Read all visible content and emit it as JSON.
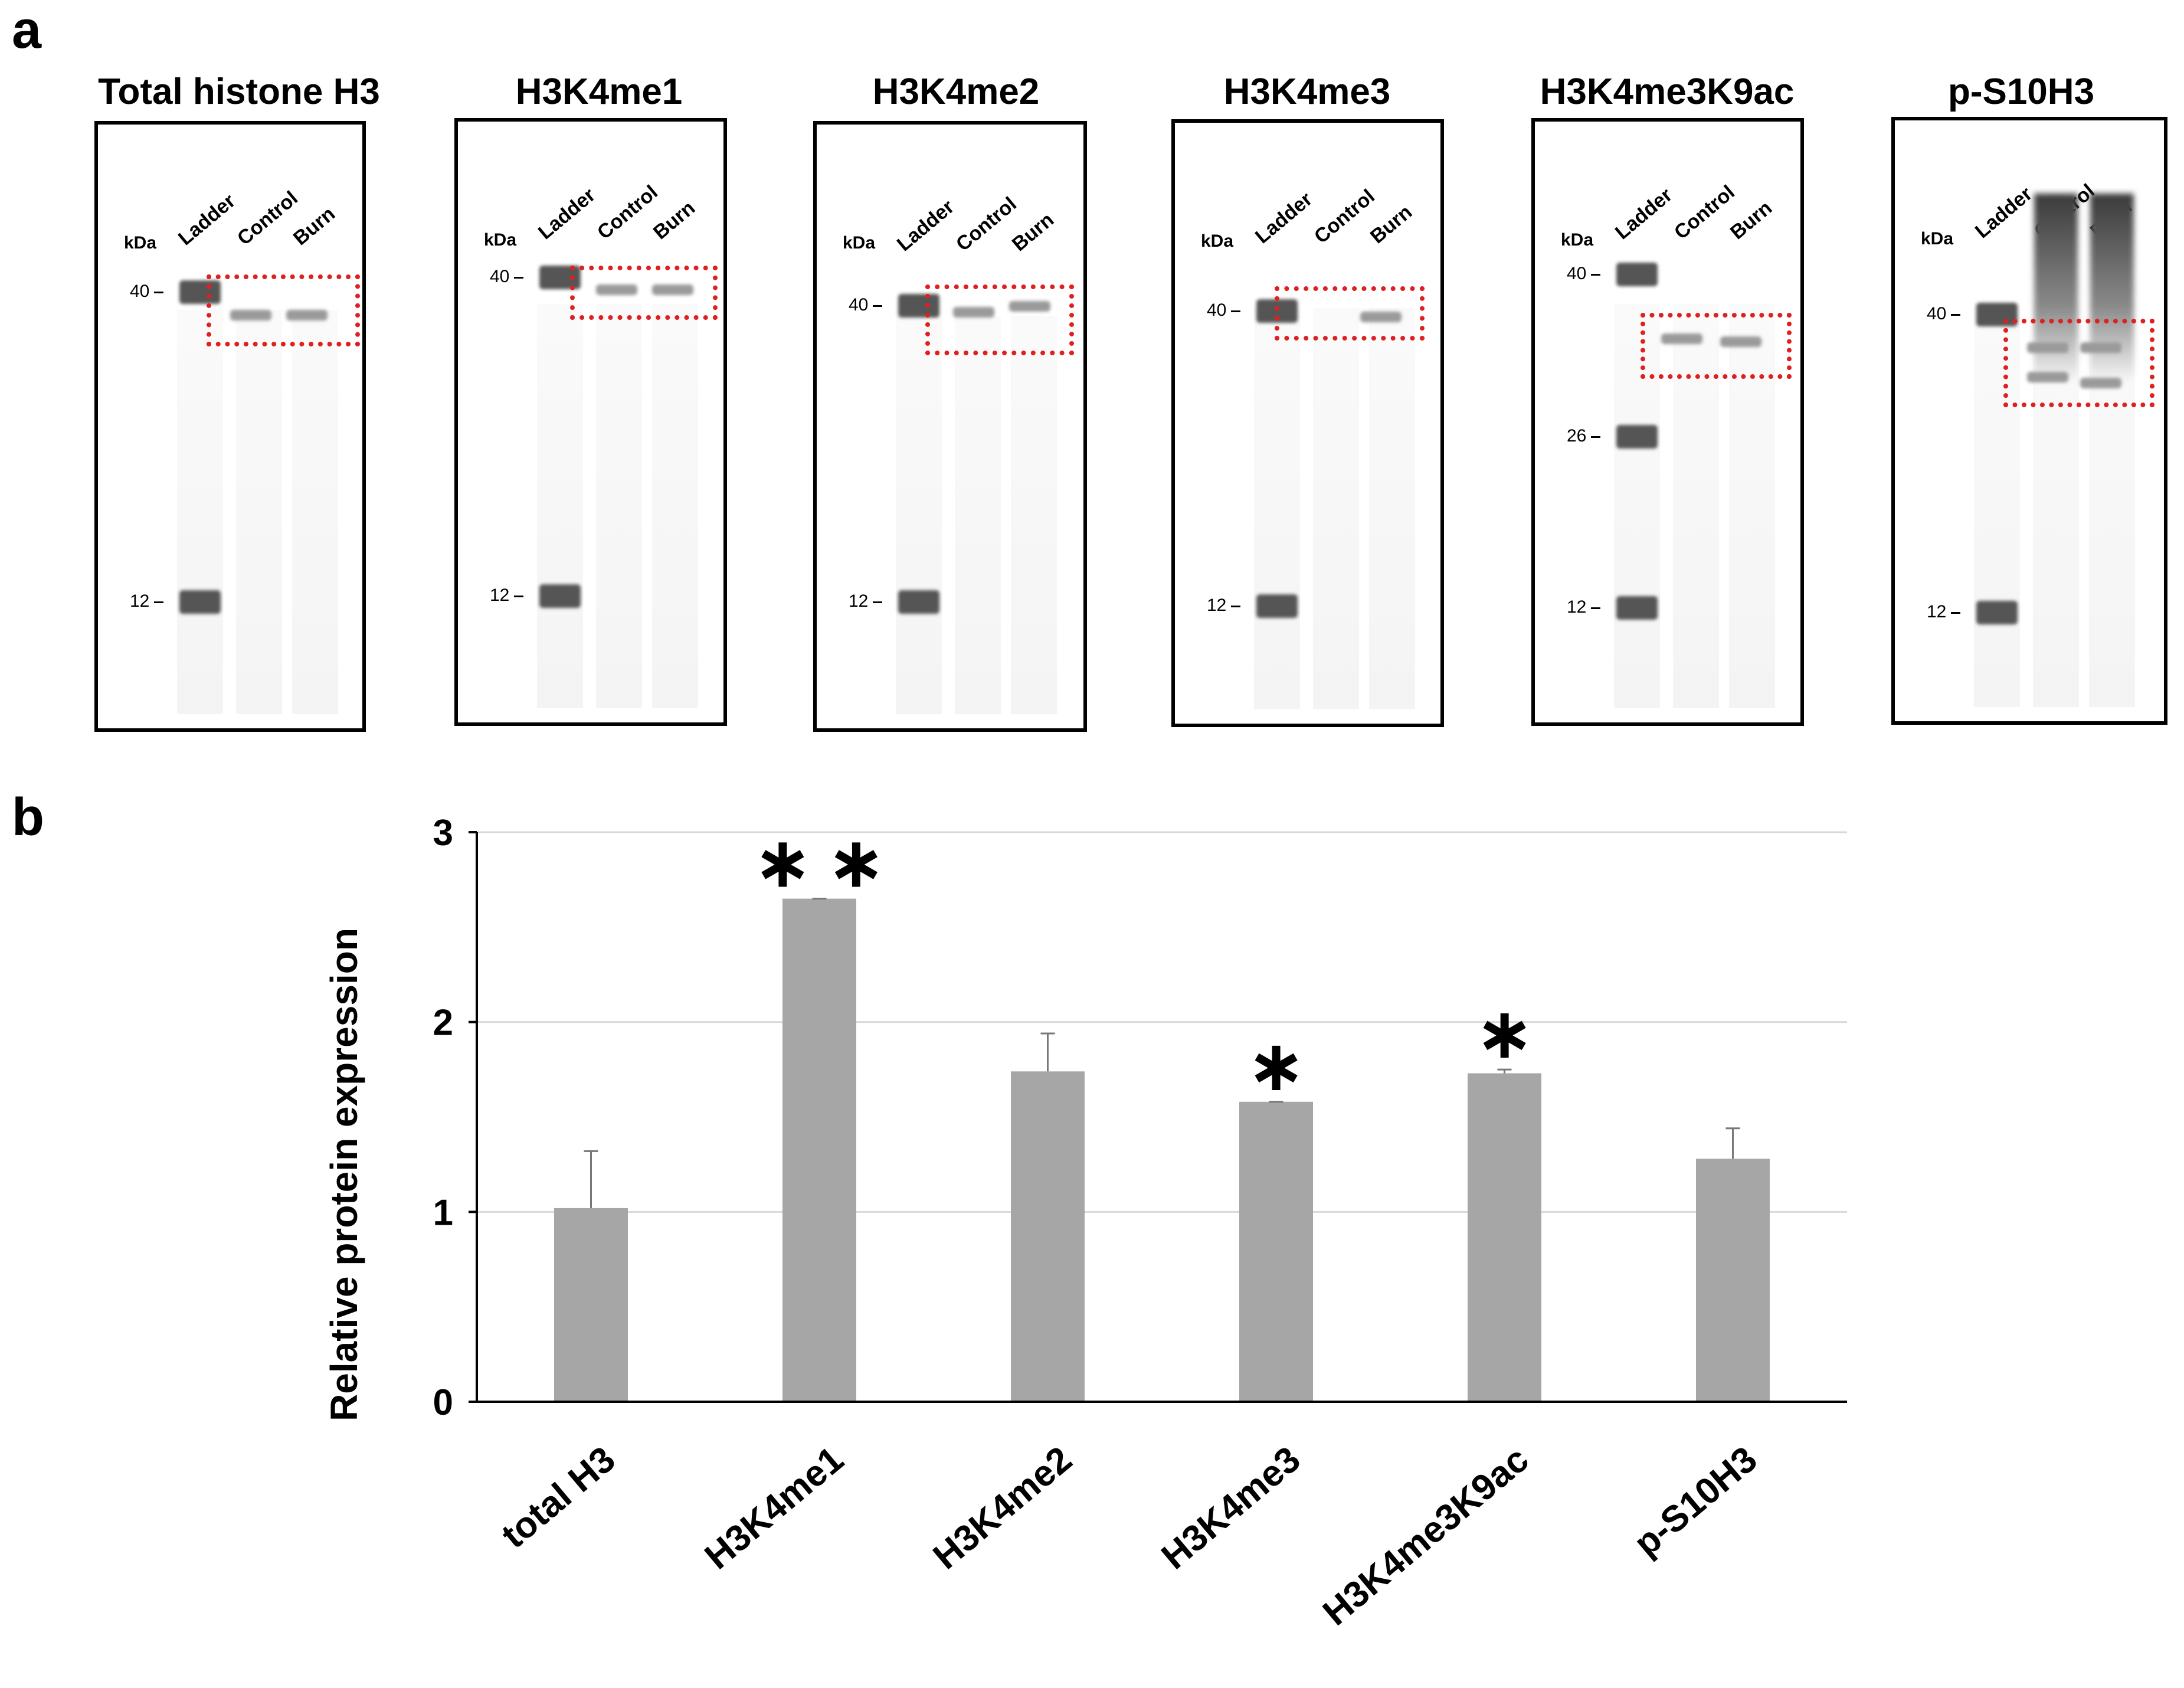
{
  "panel_a": {
    "letter": "a",
    "blots": [
      {
        "title": "Total histone H3",
        "lanes": [
          "Ladder",
          "Control",
          "Burn"
        ],
        "unit": "kDa",
        "markers": [
          "40",
          "12"
        ]
      },
      {
        "title": "H3K4me1",
        "lanes": [
          "Ladder",
          "Control",
          "Burn"
        ],
        "unit": "kDa",
        "markers": [
          "40",
          "12"
        ]
      },
      {
        "title": "H3K4me2",
        "lanes": [
          "Ladder",
          "Control",
          "Burn"
        ],
        "unit": "kDa",
        "markers": [
          "40",
          "12"
        ]
      },
      {
        "title": "H3K4me3",
        "lanes": [
          "Ladder",
          "Control",
          "Burn"
        ],
        "unit": "kDa",
        "markers": [
          "40",
          "12"
        ]
      },
      {
        "title": "H3K4me3K9ac",
        "lanes": [
          "Ladder",
          "Control",
          "Burn"
        ],
        "unit": "kDa",
        "markers": [
          "40",
          "26",
          "12"
        ]
      },
      {
        "title": "p-S10H3",
        "lanes": [
          "Ladder",
          "Control",
          "Burn"
        ],
        "unit": "kDa",
        "markers": [
          "40",
          "12"
        ]
      }
    ],
    "highlight_color": "#e02020"
  },
  "panel_b": {
    "letter": "b"
  },
  "chart_data": {
    "type": "bar",
    "categories": [
      "total  H3",
      "H3K4me1",
      "H3K4me2",
      "H3K4me3",
      "H3K4me3K9ac",
      "p-S10H3"
    ],
    "values": [
      1.02,
      2.65,
      1.74,
      1.58,
      1.73,
      1.28
    ],
    "errors": [
      0.3,
      0.0,
      0.2,
      0.0,
      0.02,
      0.16
    ],
    "significance": [
      "",
      "**",
      "",
      "*",
      "*",
      ""
    ],
    "title": "",
    "xlabel": "",
    "ylabel": "Relative protein expression",
    "ylim": [
      0,
      3
    ],
    "yticks": [
      "0",
      "1",
      "2",
      "3"
    ],
    "grid": true,
    "bar_color": "#a6a6a6",
    "grid_color": "#d9d9d9"
  }
}
